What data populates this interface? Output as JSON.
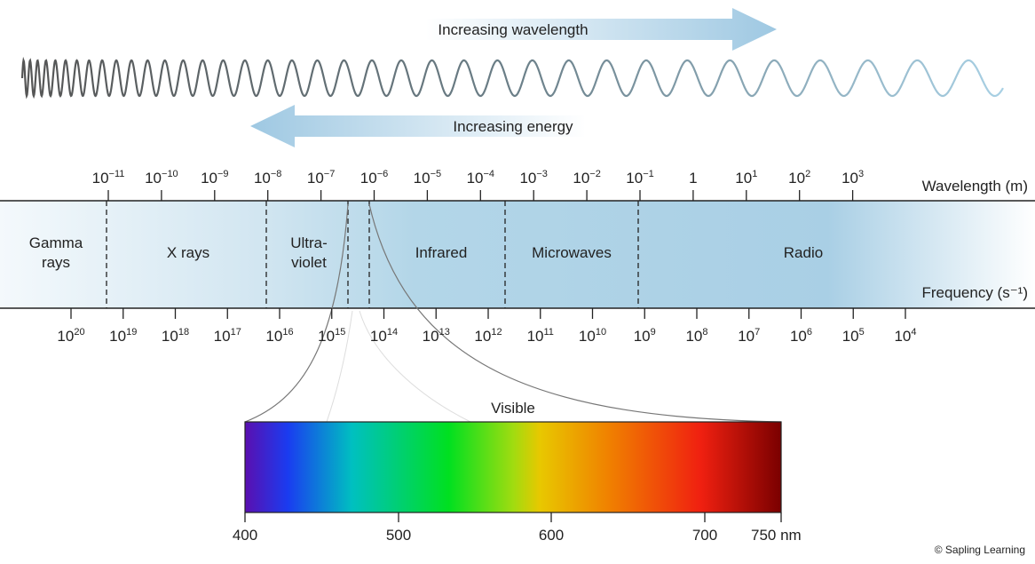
{
  "arrows": {
    "wavelength": "Increasing wavelength",
    "energy": "Increasing energy"
  },
  "wavelength_axis": {
    "title": "Wavelength (m)",
    "ticks": [
      {
        "base": "10",
        "exp": "−11"
      },
      {
        "base": "10",
        "exp": "−10"
      },
      {
        "base": "10",
        "exp": "−9"
      },
      {
        "base": "10",
        "exp": "−8"
      },
      {
        "base": "10",
        "exp": "−7"
      },
      {
        "base": "10",
        "exp": "−6"
      },
      {
        "base": "10",
        "exp": "−5"
      },
      {
        "base": "10",
        "exp": "−4"
      },
      {
        "base": "10",
        "exp": "−3"
      },
      {
        "base": "10",
        "exp": "−2"
      },
      {
        "base": "10",
        "exp": "−1"
      },
      {
        "base": "1"
      },
      {
        "base": "10",
        "exp": "1"
      },
      {
        "base": "10",
        "exp": "2"
      },
      {
        "base": "10",
        "exp": "3"
      }
    ]
  },
  "frequency_axis": {
    "title": "Frequency (s⁻¹)",
    "ticks": [
      {
        "base": "10",
        "exp": "20"
      },
      {
        "base": "10",
        "exp": "19"
      },
      {
        "base": "10",
        "exp": "18"
      },
      {
        "base": "10",
        "exp": "17"
      },
      {
        "base": "10",
        "exp": "16"
      },
      {
        "base": "10",
        "exp": "15"
      },
      {
        "base": "10",
        "exp": "14"
      },
      {
        "base": "10",
        "exp": "13"
      },
      {
        "base": "10",
        "exp": "12"
      },
      {
        "base": "10",
        "exp": "11"
      },
      {
        "base": "10",
        "exp": "10"
      },
      {
        "base": "10",
        "exp": "9"
      },
      {
        "base": "10",
        "exp": "8"
      },
      {
        "base": "10",
        "exp": "7"
      },
      {
        "base": "10",
        "exp": "6"
      },
      {
        "base": "10",
        "exp": "5"
      },
      {
        "base": "10",
        "exp": "4"
      }
    ]
  },
  "regions": [
    {
      "lines": [
        "Gamma",
        "rays"
      ]
    },
    {
      "lines": [
        "X rays"
      ]
    },
    {
      "lines": [
        "Ultra-",
        "violet"
      ]
    },
    {
      "lines": [
        "Infrared"
      ]
    },
    {
      "lines": [
        "Microwaves"
      ]
    },
    {
      "lines": [
        "Radio"
      ]
    }
  ],
  "visible": {
    "label": "Visible",
    "ticks": [
      "400",
      "500",
      "600",
      "700",
      "750 nm"
    ]
  },
  "footer": {
    "credit": "© Sapling Learning"
  }
}
